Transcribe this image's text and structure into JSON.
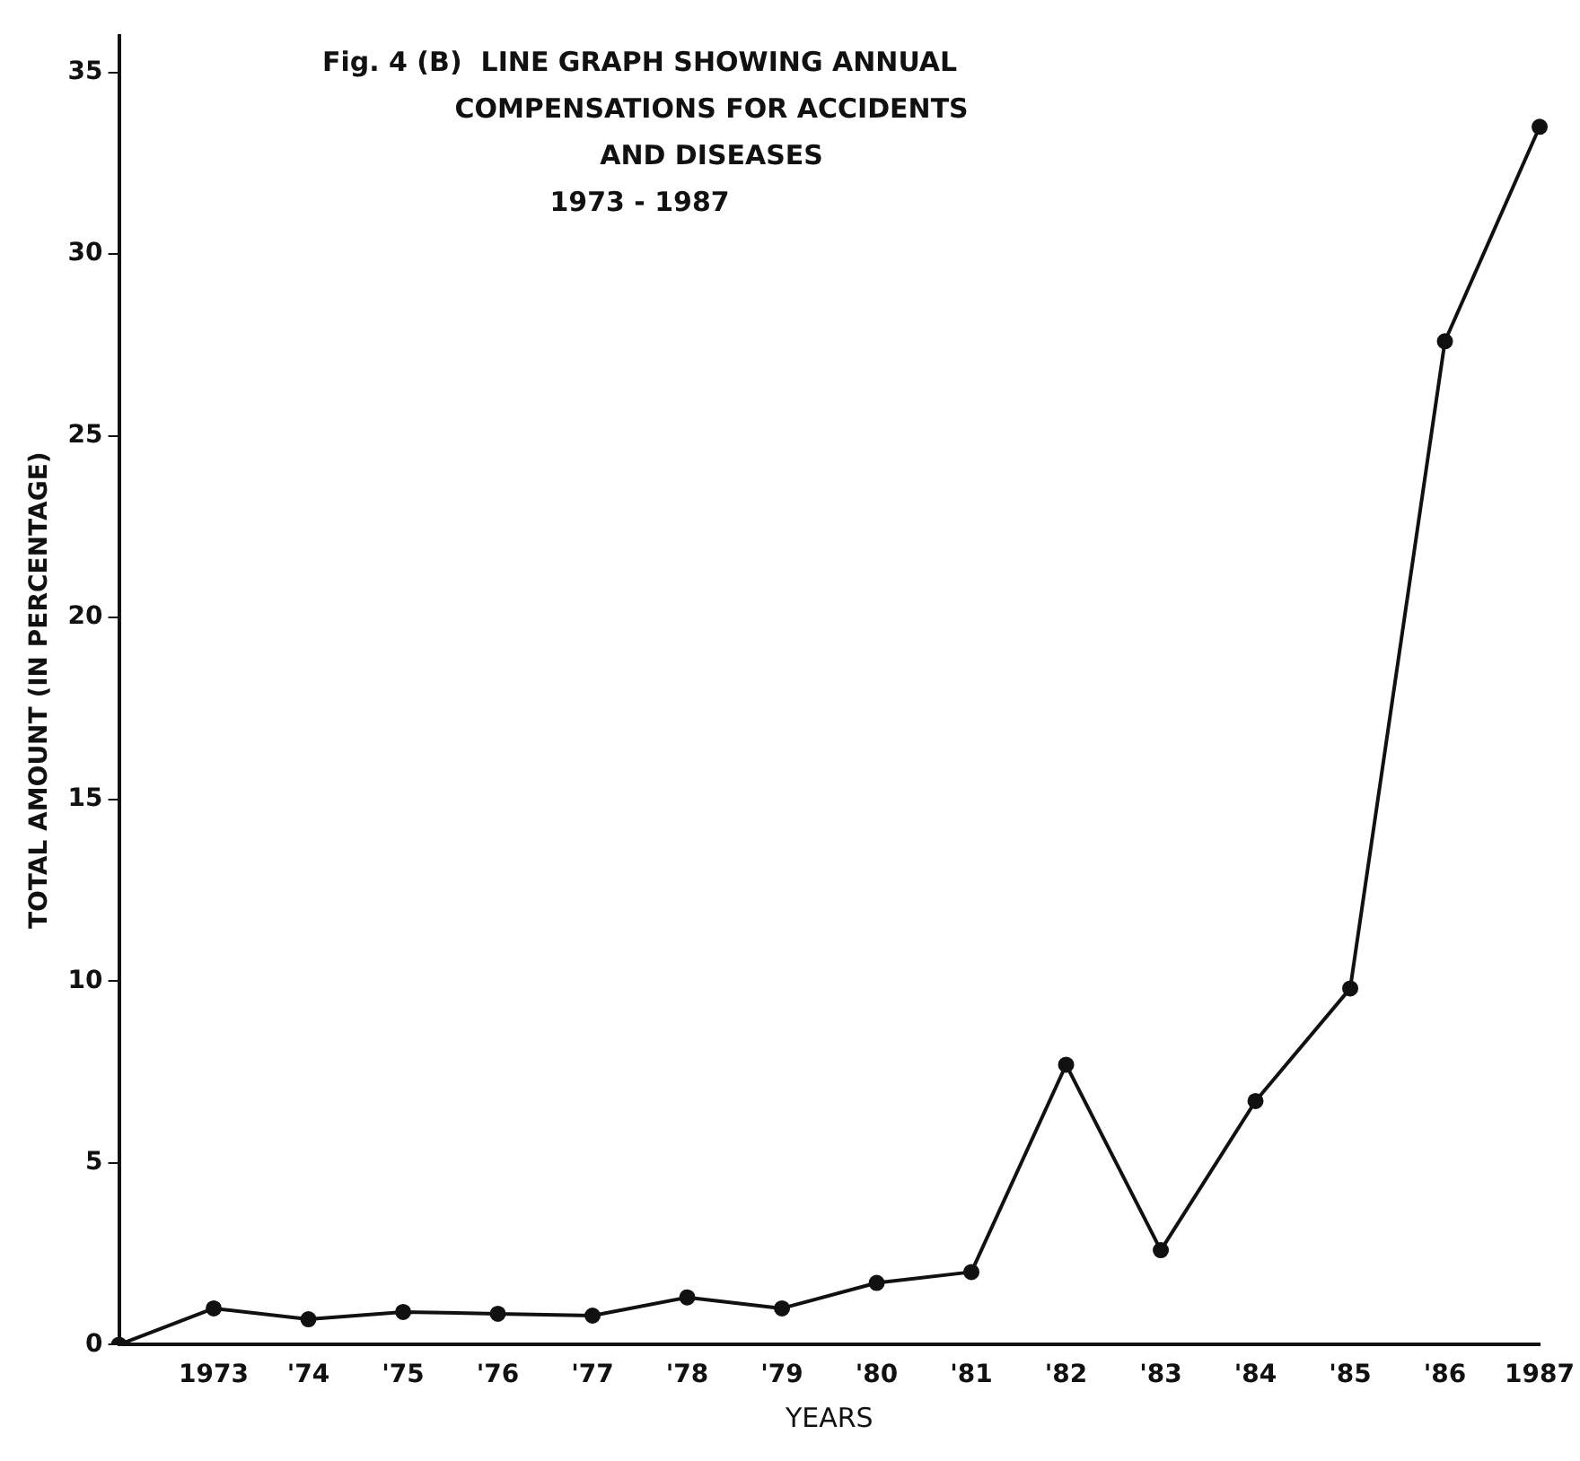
{
  "chart_data": {
    "type": "line",
    "title": "Fig. 4 (B)  LINE GRAPH SHOWING ANNUAL\nCOMPENSATIONS FOR ACCIDENTS\nAND DISEASES\n1973 - 1987",
    "xlabel": "YEARS",
    "ylabel": "TOTAL AMOUNT (IN PERCENTAGE)",
    "categories": [
      null,
      "1973",
      "'74",
      "'75",
      "'76",
      "'77",
      "'78",
      "'79",
      "'80",
      "'81",
      "'82",
      "'83",
      "'84",
      "'85",
      "'86",
      "1987"
    ],
    "series": [
      {
        "color": "#111111",
        "values": [
          0,
          1.0,
          0.7,
          0.9,
          0.85,
          0.8,
          1.3,
          1.0,
          1.7,
          2.0,
          7.7,
          2.6,
          6.7,
          9.8,
          27.6,
          33.5
        ]
      }
    ],
    "ylim": [
      0,
      36
    ],
    "yticks": [
      0,
      5,
      10,
      15,
      20,
      25,
      30,
      35
    ],
    "grid": false,
    "legend": false,
    "marker": "circle",
    "line_style": "solid"
  }
}
